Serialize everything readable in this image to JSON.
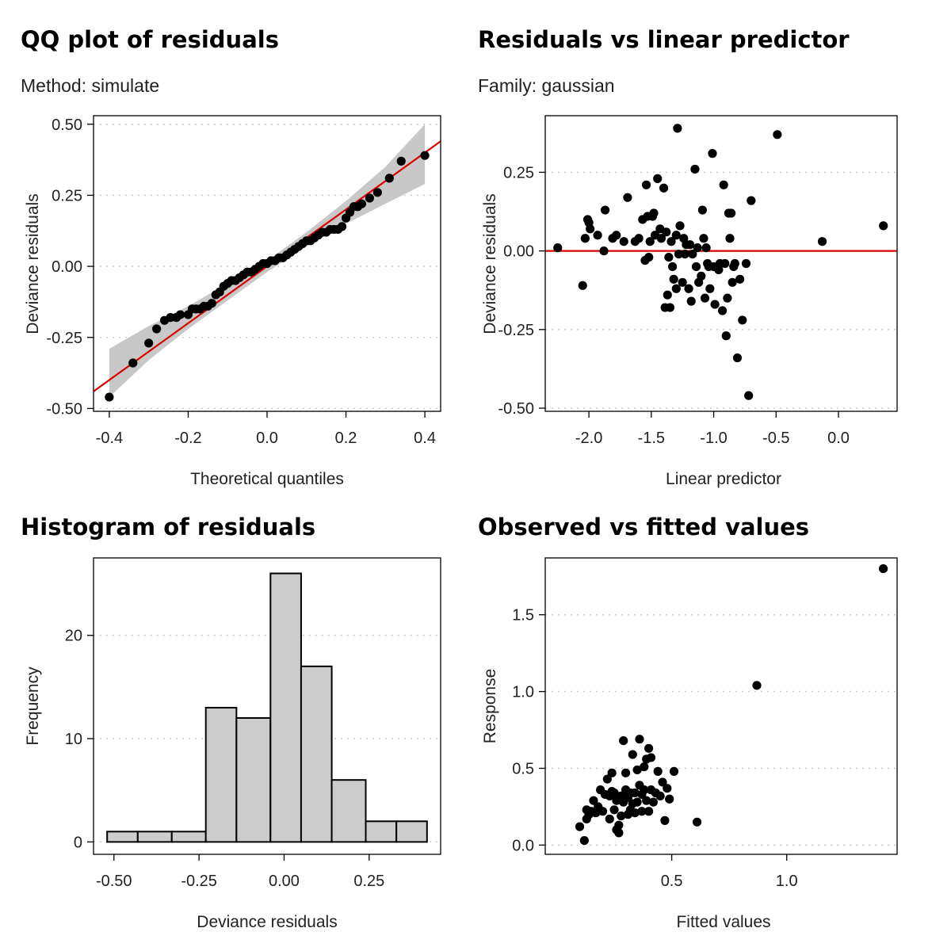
{
  "chart_data": [
    {
      "type": "scatter",
      "title": "QQ plot of residuals",
      "subtitle": "Method: simulate",
      "xlabel": "Theoretical quantiles",
      "ylabel": "Deviance residuals",
      "xlim": [
        -0.44,
        0.44
      ],
      "ylim": [
        -0.51,
        0.53
      ],
      "xticks": [
        -0.4,
        -0.2,
        0.0,
        0.2,
        0.4
      ],
      "xtick_labels": [
        "-0.4",
        "-0.2",
        "0.0",
        "0.2",
        "0.4"
      ],
      "yticks": [
        -0.5,
        -0.25,
        0.0,
        0.25,
        0.5
      ],
      "ytick_labels": [
        "-0.50",
        "-0.25",
        "0.00",
        "0.25",
        "0.50"
      ],
      "grid": "horizontal-dotted",
      "point_color": "#000000",
      "line_color": "#dd0000",
      "band_color": "#c8c8c8",
      "reference_line": {
        "intercept": 0.0,
        "slope": 1.0
      },
      "band": {
        "x": [
          -0.4,
          -0.3,
          -0.2,
          -0.1,
          0.0,
          0.1,
          0.2,
          0.3,
          0.4
        ],
        "lower": [
          -0.46,
          -0.33,
          -0.22,
          -0.12,
          -0.02,
          0.07,
          0.15,
          0.22,
          0.29
        ],
        "upper": [
          -0.29,
          -0.21,
          -0.14,
          -0.06,
          0.02,
          0.12,
          0.23,
          0.35,
          0.5
        ]
      },
      "x": [
        -0.4,
        -0.34,
        -0.3,
        -0.28,
        -0.26,
        -0.245,
        -0.23,
        -0.22,
        -0.2,
        -0.19,
        -0.18,
        -0.17,
        -0.16,
        -0.15,
        -0.14,
        -0.13,
        -0.12,
        -0.11,
        -0.1,
        -0.09,
        -0.08,
        -0.07,
        -0.06,
        -0.05,
        -0.04,
        -0.03,
        -0.02,
        -0.01,
        0.0,
        0.01,
        0.02,
        0.03,
        0.04,
        0.05,
        0.06,
        0.07,
        0.08,
        0.09,
        0.1,
        0.11,
        0.12,
        0.13,
        0.14,
        0.15,
        0.16,
        0.17,
        0.18,
        0.19,
        0.2,
        0.21,
        0.22,
        0.23,
        0.24,
        0.26,
        0.28,
        0.31,
        0.34,
        0.4
      ],
      "y": [
        -0.46,
        -0.34,
        -0.27,
        -0.22,
        -0.19,
        -0.18,
        -0.18,
        -0.17,
        -0.17,
        -0.15,
        -0.15,
        -0.15,
        -0.14,
        -0.14,
        -0.13,
        -0.1,
        -0.09,
        -0.07,
        -0.06,
        -0.05,
        -0.05,
        -0.04,
        -0.03,
        -0.02,
        -0.02,
        -0.01,
        0.0,
        0.01,
        0.01,
        0.02,
        0.02,
        0.03,
        0.03,
        0.04,
        0.05,
        0.06,
        0.07,
        0.08,
        0.09,
        0.09,
        0.1,
        0.11,
        0.12,
        0.12,
        0.13,
        0.13,
        0.13,
        0.14,
        0.17,
        0.19,
        0.21,
        0.21,
        0.22,
        0.24,
        0.26,
        0.31,
        0.37,
        0.39
      ]
    },
    {
      "type": "scatter",
      "title": "Residuals vs linear predictor",
      "subtitle": "Family: gaussian",
      "xlabel": "Linear predictor",
      "ylabel": "Deviance residuals",
      "xlim": [
        -2.35,
        0.47
      ],
      "ylim": [
        -0.51,
        0.43
      ],
      "xticks": [
        -2.0,
        -1.5,
        -1.0,
        -0.5,
        0.0
      ],
      "xtick_labels": [
        "-2.0",
        "-1.5",
        "-1.0",
        "-0.5",
        "0.0"
      ],
      "yticks": [
        -0.5,
        -0.25,
        0.0,
        0.25
      ],
      "ytick_labels": [
        "-0.50",
        "-0.25",
        "0.00",
        "0.25"
      ],
      "grid": "horizontal-dotted",
      "point_color": "#000000",
      "line_color": "#dd0000",
      "reference_line": {
        "y": 0.0
      },
      "x": [
        -2.25,
        -2.05,
        -2.03,
        -2.01,
        -2.0,
        -1.99,
        -1.93,
        -1.88,
        -1.87,
        -1.81,
        -1.78,
        -1.72,
        -1.69,
        -1.63,
        -1.6,
        -1.57,
        -1.55,
        -1.54,
        -1.53,
        -1.52,
        -1.51,
        -1.49,
        -1.48,
        -1.47,
        -1.45,
        -1.43,
        -1.42,
        -1.4,
        -1.39,
        -1.38,
        -1.37,
        -1.36,
        -1.35,
        -1.34,
        -1.33,
        -1.32,
        -1.3,
        -1.3,
        -1.29,
        -1.28,
        -1.27,
        -1.25,
        -1.24,
        -1.23,
        -1.22,
        -1.2,
        -1.19,
        -1.18,
        -1.17,
        -1.15,
        -1.14,
        -1.13,
        -1.12,
        -1.1,
        -1.09,
        -1.08,
        -1.07,
        -1.06,
        -1.05,
        -1.04,
        -1.03,
        -1.01,
        -1.0,
        -0.99,
        -0.97,
        -0.96,
        -0.95,
        -0.93,
        -0.92,
        -0.91,
        -0.9,
        -0.89,
        -0.88,
        -0.87,
        -0.86,
        -0.85,
        -0.84,
        -0.83,
        -0.81,
        -0.79,
        -0.77,
        -0.74,
        -0.72,
        -0.7,
        -0.49,
        -0.13,
        0.36
      ],
      "y": [
        0.01,
        -0.11,
        0.04,
        0.1,
        0.09,
        0.07,
        0.05,
        -0.0,
        0.13,
        0.04,
        0.05,
        0.03,
        0.17,
        0.03,
        0.04,
        0.1,
        -0.03,
        0.21,
        0.11,
        -0.02,
        0.03,
        0.11,
        0.12,
        0.05,
        0.23,
        0.07,
        0.04,
        0.2,
        -0.18,
        0.06,
        -0.14,
        -0.02,
        -0.18,
        0.03,
        -0.05,
        -0.09,
        -0.12,
        0.05,
        0.39,
        -0.01,
        0.08,
        -0.1,
        0.04,
        -0.01,
        0.02,
        -0.12,
        0.02,
        -0.16,
        -0.01,
        0.26,
        -0.05,
        0.01,
        -0.1,
        -0.08,
        0.13,
        0.04,
        -0.15,
        0.01,
        -0.04,
        -0.05,
        -0.12,
        0.31,
        -0.05,
        -0.17,
        -0.05,
        -0.06,
        -0.04,
        -0.19,
        0.21,
        -0.04,
        -0.27,
        -0.15,
        0.12,
        0.04,
        0.12,
        -0.1,
        -0.05,
        -0.04,
        -0.34,
        -0.09,
        -0.22,
        -0.04,
        -0.46,
        0.16,
        0.37,
        0.03,
        0.08
      ]
    },
    {
      "type": "bar",
      "title": "Histogram of residuals",
      "subtitle": "",
      "xlabel": "Deviance residuals",
      "ylabel": "Frequency",
      "xlim": [
        -0.56,
        0.46
      ],
      "ylim": [
        -1.2,
        27.5
      ],
      "xticks": [
        -0.5,
        -0.25,
        0.0,
        0.25
      ],
      "xtick_labels": [
        "-0.50",
        "-0.25",
        "0.00",
        "0.25"
      ],
      "yticks": [
        0,
        10,
        20
      ],
      "ytick_labels": [
        "0",
        "10",
        "20"
      ],
      "grid": "horizontal-dotted",
      "bar_color": "#cccccc",
      "bin_edges": [
        -0.52,
        -0.43,
        -0.33,
        -0.23,
        -0.14,
        -0.04,
        0.05,
        0.14,
        0.24,
        0.33,
        0.42
      ],
      "values": [
        1,
        1,
        1,
        13,
        12,
        26,
        17,
        6,
        2,
        2
      ]
    },
    {
      "type": "scatter",
      "title": "Observed vs fitted values",
      "subtitle": "",
      "xlabel": "Fitted values",
      "ylabel": "Response",
      "xlim": [
        -0.05,
        1.48
      ],
      "ylim": [
        -0.06,
        1.87
      ],
      "xticks": [
        0.5,
        1.0
      ],
      "xtick_labels": [
        "0.5",
        "1.0"
      ],
      "yticks": [
        0.0,
        0.5,
        1.0,
        1.5
      ],
      "ytick_labels": [
        "0.0",
        "0.5",
        "1.0",
        "1.5"
      ],
      "grid": "horizontal-dotted",
      "point_color": "#000000",
      "x": [
        0.1,
        0.12,
        0.13,
        0.13,
        0.14,
        0.15,
        0.16,
        0.17,
        0.18,
        0.19,
        0.2,
        0.21,
        0.22,
        0.23,
        0.23,
        0.24,
        0.24,
        0.25,
        0.25,
        0.26,
        0.26,
        0.27,
        0.27,
        0.28,
        0.28,
        0.29,
        0.29,
        0.3,
        0.3,
        0.31,
        0.31,
        0.32,
        0.32,
        0.33,
        0.33,
        0.34,
        0.34,
        0.35,
        0.35,
        0.36,
        0.36,
        0.37,
        0.37,
        0.38,
        0.38,
        0.39,
        0.39,
        0.4,
        0.4,
        0.41,
        0.41,
        0.42,
        0.43,
        0.44,
        0.45,
        0.46,
        0.47,
        0.48,
        0.49,
        0.51,
        0.61,
        0.87,
        1.42
      ],
      "y": [
        0.12,
        0.03,
        0.17,
        0.23,
        0.2,
        0.22,
        0.29,
        0.21,
        0.25,
        0.36,
        0.22,
        0.33,
        0.43,
        0.17,
        0.32,
        0.35,
        0.47,
        0.34,
        0.23,
        0.1,
        0.29,
        0.08,
        0.13,
        0.32,
        0.19,
        0.68,
        0.28,
        0.36,
        0.47,
        0.31,
        0.2,
        0.34,
        0.23,
        0.27,
        0.59,
        0.34,
        0.21,
        0.49,
        0.28,
        0.39,
        0.69,
        0.33,
        0.22,
        0.51,
        0.36,
        0.29,
        0.56,
        0.22,
        0.63,
        0.36,
        0.57,
        0.28,
        0.34,
        0.48,
        0.32,
        0.41,
        0.16,
        0.37,
        0.3,
        0.48,
        0.15,
        1.04,
        1.8
      ]
    }
  ]
}
